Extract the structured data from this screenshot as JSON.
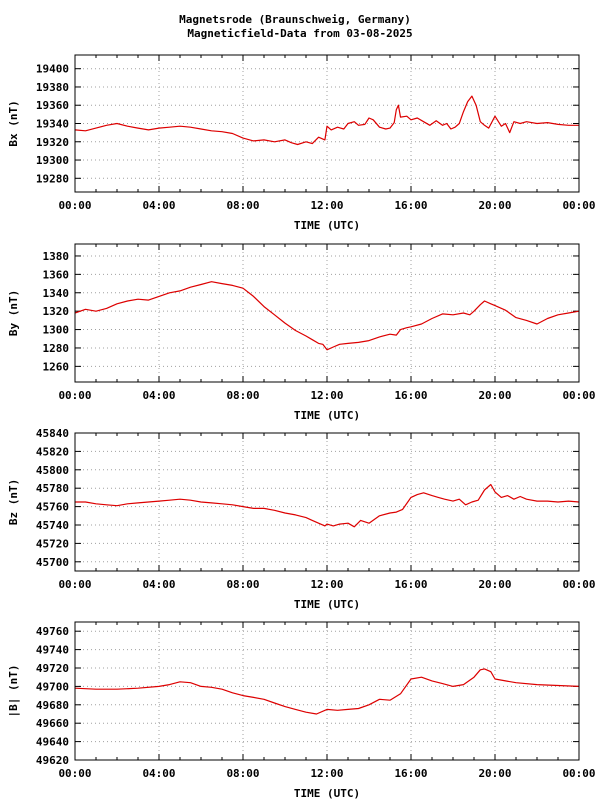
{
  "header": {
    "title_line1": "Magnetsrode (Braunschweig, Germany)",
    "title_line2": "Magneticfield-Data from 03-08-2025"
  },
  "style": {
    "line_color": "#dd0000",
    "grid_color": "#a0a0a0",
    "frame_color": "#000000"
  },
  "chart_data": [
    {
      "type": "line",
      "title": "",
      "xlabel": "TIME (UTC)",
      "ylabel": "Bx (nT)",
      "xlim": [
        0,
        24
      ],
      "ylim": [
        19265,
        19415
      ],
      "x_ticks": [
        "00:00",
        "04:00",
        "08:00",
        "12:00",
        "16:00",
        "20:00",
        "00:00"
      ],
      "y_ticks": [
        19280,
        19300,
        19320,
        19340,
        19360,
        19380,
        19400
      ],
      "grid": true,
      "series": [
        {
          "x": [
            0,
            0.5,
            1,
            1.5,
            2,
            2.5,
            3,
            3.5,
            4,
            4.5,
            5,
            5.5,
            6,
            6.5,
            7,
            7.5,
            8,
            8.5,
            9,
            9.5,
            10,
            10.3,
            10.6,
            11,
            11.3,
            11.6,
            11.9,
            12,
            12.2,
            12.5,
            12.8,
            13,
            13.3,
            13.5,
            13.8,
            14,
            14.2,
            14.5,
            14.8,
            15,
            15.2,
            15.3,
            15.4,
            15.5,
            15.8,
            16,
            16.3,
            16.6,
            16.9,
            17.2,
            17.5,
            17.7,
            17.9,
            18.1,
            18.3,
            18.5,
            18.7,
            18.9,
            19.1,
            19.3,
            19.5,
            19.7,
            20,
            20.3,
            20.5,
            20.7,
            20.9,
            21.2,
            21.5,
            22,
            22.5,
            23,
            23.5,
            24
          ],
          "y": [
            19333,
            19332,
            19335,
            19338,
            19340,
            19337,
            19335,
            19333,
            19335,
            19336,
            19337,
            19336,
            19334,
            19332,
            19331,
            19329,
            19324,
            19321,
            19322,
            19320,
            19322,
            19319,
            19317,
            19320,
            19318,
            19325,
            19322,
            19337,
            19333,
            19336,
            19334,
            19340,
            19342,
            19338,
            19339,
            19346,
            19344,
            19336,
            19334,
            19335,
            19341,
            19355,
            19360,
            19347,
            19348,
            19344,
            19346,
            19342,
            19338,
            19343,
            19338,
            19340,
            19334,
            19336,
            19340,
            19353,
            19364,
            19370,
            19360,
            19342,
            19338,
            19335,
            19348,
            19337,
            19340,
            19330,
            19342,
            19340,
            19342,
            19340,
            19341,
            19339,
            19338,
            19338
          ]
        }
      ]
    },
    {
      "type": "line",
      "title": "",
      "xlabel": "TIME (UTC)",
      "ylabel": "By (nT)",
      "xlim": [
        0,
        24
      ],
      "ylim": [
        1243,
        1393
      ],
      "x_ticks": [
        "00:00",
        "04:00",
        "08:00",
        "12:00",
        "16:00",
        "20:00",
        "00:00"
      ],
      "y_ticks": [
        1260,
        1280,
        1300,
        1320,
        1340,
        1360,
        1380
      ],
      "grid": true,
      "series": [
        {
          "x": [
            0,
            0.5,
            1,
            1.5,
            2,
            2.5,
            3,
            3.5,
            4,
            4.5,
            5,
            5.5,
            6,
            6.5,
            7,
            7.5,
            8,
            8.5,
            9,
            9.5,
            10,
            10.5,
            11,
            11.3,
            11.6,
            11.8,
            12,
            12.3,
            12.6,
            13,
            13.5,
            14,
            14.5,
            15,
            15.3,
            15.5,
            15.8,
            16,
            16.5,
            17,
            17.5,
            18,
            18.5,
            18.8,
            19,
            19.3,
            19.5,
            19.8,
            20,
            20.5,
            21,
            21.5,
            22,
            22.5,
            23,
            23.5,
            24
          ],
          "y": [
            1318,
            1322,
            1320,
            1323,
            1328,
            1331,
            1333,
            1332,
            1336,
            1340,
            1342,
            1346,
            1349,
            1352,
            1350,
            1348,
            1345,
            1336,
            1325,
            1316,
            1307,
            1299,
            1293,
            1289,
            1285,
            1284,
            1278,
            1281,
            1284,
            1285,
            1286,
            1288,
            1292,
            1295,
            1294,
            1300,
            1302,
            1303,
            1306,
            1312,
            1317,
            1316,
            1318,
            1316,
            1320,
            1327,
            1331,
            1328,
            1326,
            1321,
            1313,
            1310,
            1306,
            1312,
            1316,
            1318,
            1320
          ]
        }
      ]
    },
    {
      "type": "line",
      "title": "",
      "xlabel": "TIME (UTC)",
      "ylabel": "Bz (nT)",
      "xlim": [
        0,
        24
      ],
      "ylim": [
        45690,
        45840
      ],
      "x_ticks": [
        "00:00",
        "04:00",
        "08:00",
        "12:00",
        "16:00",
        "20:00",
        "00:00"
      ],
      "y_ticks": [
        45700,
        45720,
        45740,
        45760,
        45780,
        45800,
        45820,
        45840
      ],
      "grid": true,
      "series": [
        {
          "x": [
            0,
            0.5,
            1,
            1.5,
            2,
            2.5,
            3,
            3.5,
            4,
            4.5,
            5,
            5.5,
            6,
            6.5,
            7,
            7.5,
            8,
            8.5,
            9,
            9.5,
            10,
            10.5,
            11,
            11.3,
            11.6,
            11.9,
            12,
            12.3,
            12.6,
            13,
            13.3,
            13.6,
            14,
            14.5,
            15,
            15.3,
            15.6,
            16,
            16.3,
            16.6,
            17,
            17.3,
            17.6,
            18,
            18.3,
            18.6,
            18.9,
            19.2,
            19.5,
            19.8,
            20,
            20.3,
            20.6,
            20.9,
            21.2,
            21.5,
            22,
            22.5,
            23,
            23.5,
            24
          ],
          "y": [
            45765,
            45765,
            45763,
            45762,
            45761,
            45763,
            45764,
            45765,
            45766,
            45767,
            45768,
            45767,
            45765,
            45764,
            45763,
            45762,
            45760,
            45758,
            45758,
            45756,
            45753,
            45751,
            45748,
            45745,
            45742,
            45739,
            45741,
            45739,
            45741,
            45742,
            45738,
            45745,
            45742,
            45750,
            45753,
            45754,
            45757,
            45770,
            45773,
            45775,
            45772,
            45770,
            45768,
            45766,
            45768,
            45762,
            45765,
            45767,
            45778,
            45784,
            45776,
            45770,
            45772,
            45768,
            45771,
            45768,
            45766,
            45766,
            45765,
            45766,
            45765
          ]
        }
      ]
    },
    {
      "type": "line",
      "title": "",
      "xlabel": "TIME (UTC)",
      "ylabel": "|B| (nT)",
      "xlim": [
        0,
        24
      ],
      "ylim": [
        49620,
        49770
      ],
      "x_ticks": [
        "00:00",
        "04:00",
        "08:00",
        "12:00",
        "16:00",
        "20:00",
        "00:00"
      ],
      "y_ticks": [
        49620,
        49640,
        49660,
        49680,
        49700,
        49720,
        49740,
        49760
      ],
      "grid": true,
      "series": [
        {
          "x": [
            0,
            1,
            2,
            3,
            4,
            4.5,
            5,
            5.5,
            6,
            6.5,
            7,
            7.5,
            8,
            8.5,
            9,
            9.5,
            10,
            10.5,
            11,
            11.5,
            12,
            12.5,
            13,
            13.5,
            14,
            14.5,
            15,
            15.5,
            16,
            16.5,
            17,
            17.5,
            18,
            18.5,
            19,
            19.3,
            19.5,
            19.8,
            20,
            20.5,
            21,
            22,
            23,
            24
          ],
          "y": [
            49698,
            49697,
            49697,
            49698,
            49700,
            49702,
            49705,
            49704,
            49700,
            49699,
            49697,
            49693,
            49690,
            49688,
            49686,
            49682,
            49678,
            49675,
            49672,
            49670,
            49675,
            49674,
            49675,
            49676,
            49680,
            49686,
            49685,
            49692,
            49708,
            49710,
            49706,
            49703,
            49700,
            49702,
            49710,
            49718,
            49719,
            49716,
            49708,
            49706,
            49704,
            49702,
            49701,
            49700
          ]
        }
      ]
    }
  ]
}
